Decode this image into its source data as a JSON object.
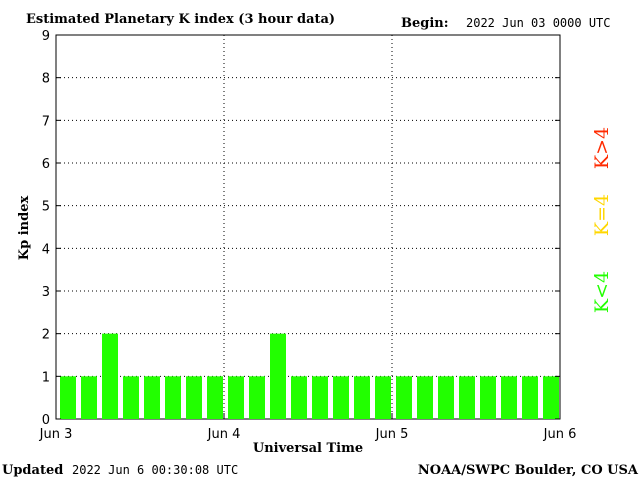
{
  "header": {
    "title": "Estimated Planetary K index (3 hour data)",
    "begin_label": "Begin:",
    "begin_value": "2022 Jun 03 0000 UTC"
  },
  "footer": {
    "updated_label": "Updated",
    "updated_value": "2022 Jun  6 00:30:08 UTC",
    "source": "NOAA/SWPC Boulder, CO USA"
  },
  "legend": {
    "high": {
      "label": "K>4",
      "color": "#ff2a00"
    },
    "mid": {
      "label": "K=4",
      "color": "#ffd700"
    },
    "low": {
      "label": "K<4",
      "color": "#22ff00"
    }
  },
  "chart_data": {
    "type": "bar",
    "title": "Estimated Planetary K index (3 hour data)",
    "xlabel": "Universal Time",
    "ylabel": "Kp index",
    "ylim": [
      0,
      9
    ],
    "yticks": [
      "0",
      "1",
      "2",
      "3",
      "4",
      "5",
      "6",
      "7",
      "8",
      "9"
    ],
    "xticks": [
      "Jun 3",
      "Jun 4",
      "Jun 5",
      "Jun 6"
    ],
    "interval_hours": 3,
    "values": [
      1,
      1,
      2,
      1,
      1,
      1,
      1,
      1,
      1,
      1,
      2,
      1,
      1,
      1,
      1,
      1,
      1,
      1,
      1,
      1,
      1,
      1,
      1,
      1
    ],
    "bar_color": "#22ff00",
    "grid": true
  }
}
